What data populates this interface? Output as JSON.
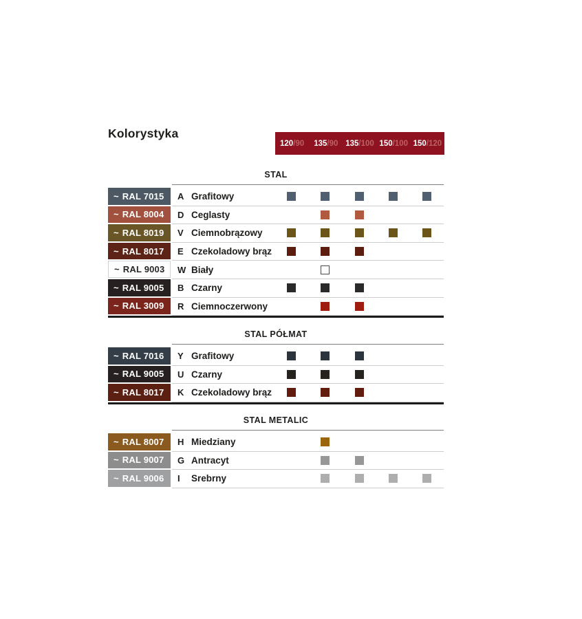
{
  "page": {
    "title": "Kolorystyka"
  },
  "size_header": {
    "bg": "#8e1220",
    "main_color": "#ffffff",
    "sub_color": "#bd6167",
    "sizes": [
      {
        "main": "120",
        "sub": "/90"
      },
      {
        "main": "135",
        "sub": "/90"
      },
      {
        "main": "135",
        "sub": "/100"
      },
      {
        "main": "150",
        "sub": "/100"
      },
      {
        "main": "150",
        "sub": "/120"
      }
    ]
  },
  "sections": [
    {
      "heading": "STAL",
      "bottom_border": "thick",
      "rows": [
        {
          "tilde": "~",
          "ral": "RAL 7015",
          "code": "A",
          "name": "Grafitowy",
          "swatch_bg": "#4c5964",
          "swatch_text": "#ffffff",
          "swatch_border": "",
          "square_color": "#506070",
          "square_border": "",
          "availability": [
            true,
            true,
            true,
            true,
            true
          ]
        },
        {
          "tilde": "~",
          "ral": "RAL 8004",
          "code": "D",
          "name": "Ceglasty",
          "swatch_bg": "#a2513e",
          "swatch_text": "#ffffff",
          "swatch_border": "",
          "square_color": "#b05a40",
          "square_border": "",
          "availability": [
            false,
            true,
            true,
            false,
            false
          ]
        },
        {
          "tilde": "~",
          "ral": "RAL 8019",
          "code": "V",
          "name": "Ciemnobrązowy",
          "swatch_bg": "#6a5527",
          "swatch_text": "#ffffff",
          "swatch_border": "",
          "square_color": "#6c5518",
          "square_border": "",
          "availability": [
            true,
            true,
            true,
            true,
            true
          ]
        },
        {
          "tilde": "~",
          "ral": "RAL 8017",
          "code": "E",
          "name": "Czekoladowy brąz",
          "swatch_bg": "#5d2316",
          "swatch_text": "#ffffff",
          "swatch_border": "",
          "square_color": "#5d1d0e",
          "square_border": "",
          "availability": [
            true,
            true,
            true,
            false,
            false
          ]
        },
        {
          "tilde": "~",
          "ral": "RAL 9003",
          "code": "W",
          "name": "Biały",
          "swatch_bg": "#fefefe",
          "swatch_text": "#262626",
          "swatch_border": "#d2d2d2",
          "square_color": "#ffffff",
          "square_border": "#4a4a4a",
          "availability": [
            false,
            true,
            false,
            false,
            false
          ]
        },
        {
          "tilde": "~",
          "ral": "RAL 9005",
          "code": "B",
          "name": "Czarny",
          "swatch_bg": "#262120",
          "swatch_text": "#ffffff",
          "swatch_border": "",
          "square_color": "#2a2a2a",
          "square_border": "",
          "availability": [
            true,
            true,
            true,
            false,
            false
          ]
        },
        {
          "tilde": "~",
          "ral": "RAL 3009",
          "code": "R",
          "name": "Ciemnoczerwony",
          "swatch_bg": "#7b241b",
          "swatch_text": "#ffffff",
          "swatch_border": "",
          "square_color": "#9e1d0f",
          "square_border": "",
          "availability": [
            false,
            true,
            true,
            false,
            false
          ]
        }
      ]
    },
    {
      "heading": "STAL PÓŁMAT",
      "bottom_border": "thick",
      "rows": [
        {
          "tilde": "~",
          "ral": "RAL 7016",
          "code": "Y",
          "name": "Grafitowy",
          "swatch_bg": "#343e49",
          "swatch_text": "#ffffff",
          "swatch_border": "",
          "square_color": "#2c353e",
          "square_border": "",
          "availability": [
            true,
            true,
            true,
            false,
            false
          ]
        },
        {
          "tilde": "~",
          "ral": "RAL 9005",
          "code": "U",
          "name": "Czarny",
          "swatch_bg": "#262120",
          "swatch_text": "#ffffff",
          "swatch_border": "",
          "square_color": "#26231f",
          "square_border": "",
          "availability": [
            true,
            true,
            true,
            false,
            false
          ]
        },
        {
          "tilde": "~",
          "ral": "RAL 8017",
          "code": "K",
          "name": "Czekoladowy brąz",
          "swatch_bg": "#5c2013",
          "swatch_text": "#ffffff",
          "swatch_border": "",
          "square_color": "#611c0d",
          "square_border": "",
          "availability": [
            true,
            true,
            true,
            false,
            false
          ]
        }
      ]
    },
    {
      "heading": "STAL METALIC",
      "bottom_border": "thin",
      "rows": [
        {
          "tilde": "~",
          "ral": "RAL 8007",
          "code": "H",
          "name": "Miedziany",
          "swatch_bg": "#8a5a1e",
          "swatch_text": "#ffffff",
          "swatch_border": "",
          "square_color": "#9a650b",
          "square_border": "",
          "availability": [
            false,
            true,
            false,
            false,
            false
          ]
        },
        {
          "tilde": "~",
          "ral": "RAL 9007",
          "code": "G",
          "name": "Antracyt",
          "swatch_bg": "#8d8d8d",
          "swatch_text": "#ffffff",
          "swatch_border": "",
          "square_color": "#979797",
          "square_border": "",
          "availability": [
            false,
            true,
            true,
            false,
            false
          ]
        },
        {
          "tilde": "~",
          "ral": "RAL 9006",
          "code": "I",
          "name": "Srebrny",
          "swatch_bg": "#9fa0a1",
          "swatch_text": "#ffffff",
          "swatch_border": "",
          "square_color": "#aeaeae",
          "square_border": "",
          "availability": [
            false,
            true,
            true,
            true,
            true
          ]
        }
      ]
    }
  ]
}
